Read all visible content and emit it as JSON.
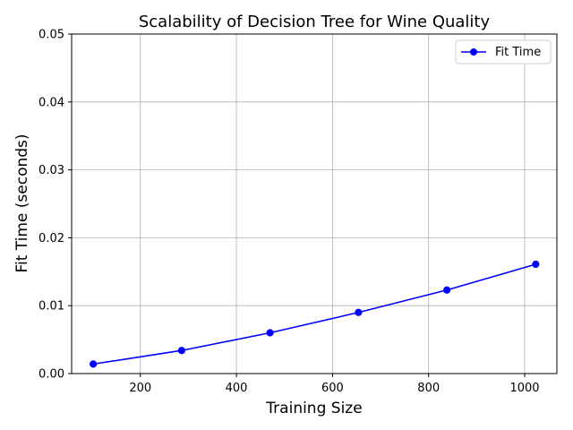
{
  "chart_data": {
    "type": "line",
    "title": "Scalability of Decision Tree for Wine Quality",
    "xlabel": "Training Size",
    "ylabel": "Fit Time (seconds)",
    "xlim": [
      57,
      1067
    ],
    "ylim": [
      0.0,
      0.05
    ],
    "grid": true,
    "legend_position": "top-right",
    "x_ticks": [
      200,
      400,
      600,
      800,
      1000
    ],
    "x_tick_labels": [
      "200",
      "400",
      "600",
      "800",
      "1000"
    ],
    "y_ticks": [
      0.0,
      0.01,
      0.02,
      0.03,
      0.04,
      0.05
    ],
    "y_tick_labels": [
      "0.00",
      "0.01",
      "0.02",
      "0.03",
      "0.04",
      "0.05"
    ],
    "x": [
      102,
      286,
      470,
      654,
      838,
      1023
    ],
    "series": [
      {
        "name": "Fit Time",
        "color": "#0000ff",
        "marker": "circle",
        "values": [
          0.0014,
          0.0034,
          0.006,
          0.009,
          0.0123,
          0.0161
        ]
      }
    ]
  }
}
